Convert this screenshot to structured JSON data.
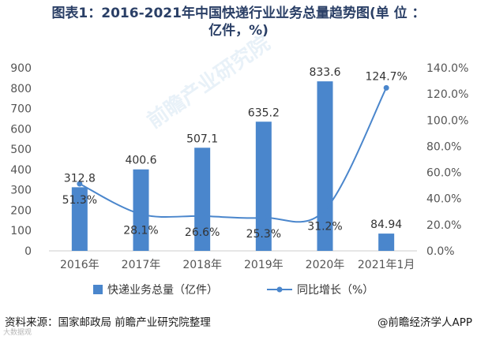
{
  "title_line1": "图表1：2016-2021年中国快递行业业务总量趋势图(单 位 ：",
  "title_line2": "亿件，%)",
  "source": "资料来源：国家邮政局 前瞻产业研究院整理",
  "credit": "@前瞻经济学人APP",
  "stamp": "大数据观",
  "watermark": "前瞻产业研究院",
  "colors": {
    "bar": "#4a86cc",
    "line": "#4a86cc",
    "axis": "#555555",
    "axis_line": "#cccccc",
    "title": "#2a3f66"
  },
  "chart_data": {
    "type": "bar",
    "categories": [
      "2016年",
      "2017年",
      "2018年",
      "2019年",
      "2020年",
      "2021年1月"
    ],
    "series": [
      {
        "name": "快递业务总量（亿件）",
        "type": "bar",
        "axis": "left",
        "values": [
          312.8,
          400.6,
          507.1,
          635.2,
          833.6,
          84.94
        ],
        "labels": [
          "312.8",
          "400.6",
          "507.1",
          "635.2",
          "833.6",
          "84.94"
        ]
      },
      {
        "name": "同比增长（%）",
        "type": "line",
        "axis": "right",
        "values": [
          51.3,
          28.1,
          26.6,
          25.3,
          31.2,
          124.7
        ],
        "labels": [
          "51.3%",
          "28.1%",
          "26.6%",
          "25.3%",
          "31.2%",
          "124.7%"
        ]
      }
    ],
    "y_left": {
      "min": 0,
      "max": 900,
      "ticks": [
        "0",
        "100",
        "200",
        "300",
        "400",
        "500",
        "600",
        "700",
        "800",
        "900"
      ]
    },
    "y_right": {
      "min": 0,
      "max": 140,
      "ticks": [
        "0.0%",
        "20.0%",
        "40.0%",
        "60.0%",
        "80.0%",
        "100.0%",
        "120.0%",
        "140.0%"
      ]
    },
    "legend_position": "bottom",
    "grid": false
  }
}
